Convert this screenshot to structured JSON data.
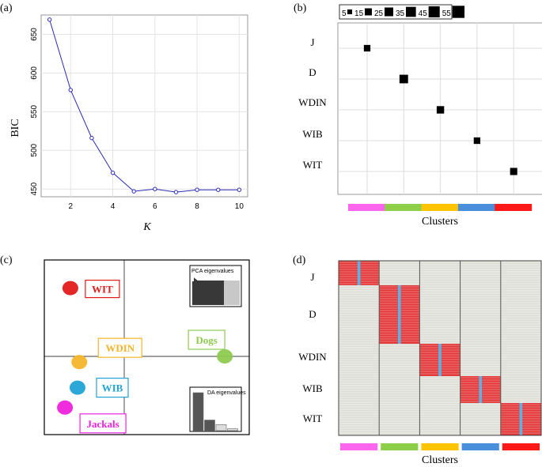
{
  "panels": {
    "a": {
      "label": "(a)"
    },
    "b": {
      "label": "(b)"
    },
    "c": {
      "label": "(c)"
    },
    "d": {
      "label": "(d)"
    }
  },
  "colors": {
    "line": "#2b2bb8",
    "cluster1": "#ff66ee",
    "cluster2": "#8ecf4a",
    "cluster3": "#ffc400",
    "cluster4": "#4a8fdc",
    "cluster5": "#ff1a1a",
    "wit": "#e31a1a",
    "wdin": "#f5b52a",
    "wib": "#21a3d6",
    "jackals": "#ee22dd",
    "dogs": "#8fca50",
    "heat_red": "#e23a3a",
    "heat_gray": "#ddddd5"
  },
  "chart_data": [
    {
      "type": "line",
      "panel": "a",
      "title": "",
      "xlabel": "K",
      "ylabel": "BIC",
      "x": [
        1,
        2,
        3,
        4,
        5,
        6,
        7,
        8,
        9,
        10
      ],
      "values": [
        669,
        578,
        516,
        471,
        447,
        450,
        446,
        449,
        449,
        449
      ],
      "xlim": [
        0.6,
        10.4
      ],
      "ylim": [
        440,
        675
      ],
      "xticks": [
        "2",
        "4",
        "6",
        "8",
        "10"
      ],
      "yticks": [
        "450",
        "500",
        "550",
        "600",
        "650"
      ]
    },
    {
      "type": "scatter",
      "panel": "b",
      "xlabel": "Clusters",
      "rows": [
        "J",
        "D",
        "WDIN",
        "WIB",
        "WIT"
      ],
      "clusters": [
        1,
        2,
        3,
        4,
        5
      ],
      "points": [
        {
          "row": "J",
          "cluster": 1,
          "size": 35
        },
        {
          "row": "D",
          "cluster": 2,
          "size": 60
        },
        {
          "row": "WDIN",
          "cluster": 3,
          "size": 45
        },
        {
          "row": "WIB",
          "cluster": 4,
          "size": 35
        },
        {
          "row": "WIT",
          "cluster": 5,
          "size": 42
        }
      ],
      "legend": {
        "title": "",
        "entries": [
          "5",
          "15",
          "25",
          "35",
          "45",
          "55"
        ],
        "sizes": [
          5,
          15,
          25,
          35,
          45,
          55
        ]
      }
    },
    {
      "type": "scatter",
      "panel": "c",
      "groups": [
        {
          "name": "WIT",
          "x": -3.0,
          "y": 2.4,
          "color": "#e31a1a"
        },
        {
          "name": "WDIN",
          "x": -2.5,
          "y": -0.2,
          "color": "#f5b52a"
        },
        {
          "name": "WIB",
          "x": -2.6,
          "y": -1.1,
          "color": "#21a3d6"
        },
        {
          "name": "Jackals",
          "x": -3.3,
          "y": -1.8,
          "color": "#ee22dd"
        },
        {
          "name": "Dogs",
          "x": 5.6,
          "y": 0.0,
          "color": "#8fca50"
        }
      ],
      "insets": {
        "pca": {
          "title": "PCA eigenvalues"
        },
        "da": {
          "title": "DA eigenvalues",
          "values": [
            1.0,
            0.28,
            0.16,
            0.05
          ]
        }
      }
    },
    {
      "type": "heatmap",
      "panel": "d",
      "xlabel": "Clusters",
      "rows": [
        "J",
        "D",
        "WDIN",
        "WIB",
        "WIT"
      ],
      "clusters": [
        1,
        2,
        3,
        4,
        5
      ],
      "blocks": [
        {
          "row": "J",
          "cluster": 1
        },
        {
          "row": "D",
          "cluster": 2
        },
        {
          "row": "WDIN",
          "cluster": 3
        },
        {
          "row": "WIB",
          "cluster": 4
        },
        {
          "row": "WIT",
          "cluster": 5
        }
      ]
    }
  ]
}
